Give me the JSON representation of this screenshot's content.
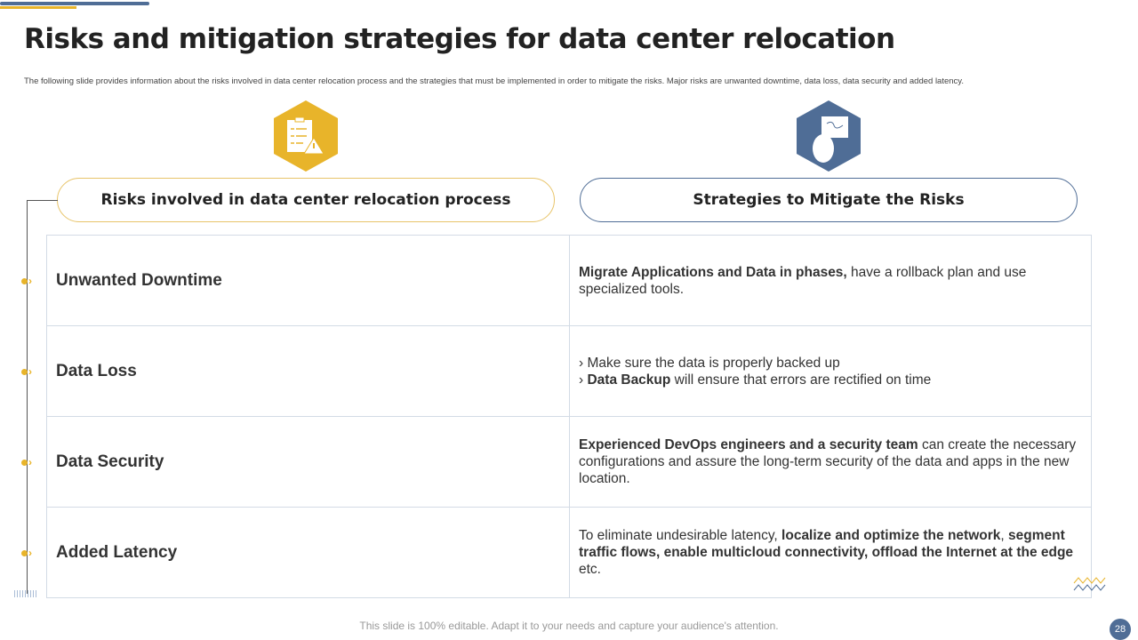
{
  "title": "Risks and mitigation strategies for data center relocation",
  "subtitle": "The following slide provides information about the risks involved in data center relocation process and the strategies that must be implemented  in order to mitigate  the risks. Major risks are unwanted downtime, data loss, data security and added latency.",
  "colors": {
    "gold": "#e8b42a",
    "blue": "#4f6d96"
  },
  "icons": {
    "left": "clipboard-warning-icon",
    "right": "hand-map-icon"
  },
  "headers": {
    "risks": "Risks involved in data center relocation process",
    "strategies": "Strategies to Mitigate the Risks"
  },
  "rows": [
    {
      "risk": "Unwanted Downtime",
      "parts": [
        {
          "b": "Migrate Applications and Data in phases,"
        },
        {
          "t": " have a rollback plan and use specialized tools."
        }
      ]
    },
    {
      "risk": "Data Loss",
      "bullets": [
        [
          {
            "t": "Make sure the data is properly backed up"
          }
        ],
        [
          {
            "b": "Data Backup"
          },
          {
            "t": " will ensure that errors are rectified on time"
          }
        ]
      ]
    },
    {
      "risk": "Data Security",
      "parts": [
        {
          "b": "Experienced DevOps engineers and a security team"
        },
        {
          "t": " can create the necessary configurations and assure the long-term security of the data and apps in the new location."
        }
      ]
    },
    {
      "risk": "Added Latency",
      "parts": [
        {
          "t": "To eliminate undesirable latency,  "
        },
        {
          "b": "localize and optimize the network"
        },
        {
          "t": ", "
        },
        {
          "b": "segment traffic flows, enable multicloud connectivity, offload the Internet at the edge"
        },
        {
          "t": " etc."
        }
      ]
    }
  ],
  "footer": "This slide is 100% editable. Adapt it to your needs and capture your audience's attention.",
  "page_number": "28"
}
